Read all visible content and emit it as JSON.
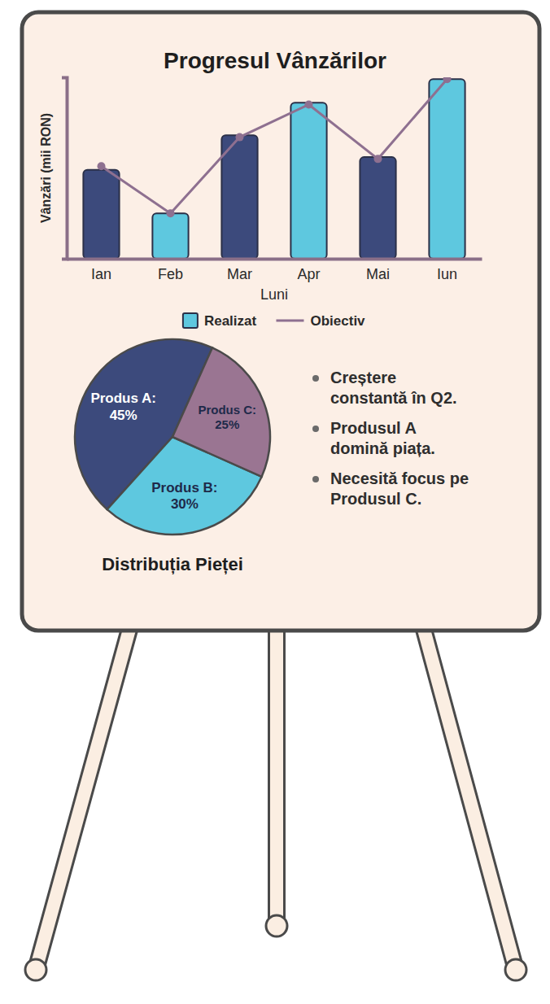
{
  "chart_data": [
    {
      "type": "bar",
      "title": "Progresul Vânzărilor",
      "x_label": "Luni",
      "y_label": "Vânzări (mii RON)",
      "categories": [
        "Ian",
        "Feb",
        "Mar",
        "Apr",
        "Mai",
        "Iun"
      ],
      "series": [
        {
          "name": "Realizat",
          "type": "bar",
          "color": "#5ec8df",
          "colors": [
            "#3c4a7c",
            "#5ec8df",
            "#3c4a7c",
            "#5ec8df",
            "#3c4a7c",
            "#5ec8df"
          ],
          "values": [
            49,
            25,
            68,
            86,
            56,
            99
          ]
        },
        {
          "name": "Obiectiv",
          "type": "line",
          "color": "#8e7090",
          "marker": "circle",
          "values": [
            51,
            25,
            67,
            85,
            55,
            99
          ]
        }
      ],
      "ylim": [
        0,
        100
      ],
      "tick_labels": "x",
      "grid": false,
      "legend": "bottom"
    },
    {
      "type": "pie",
      "title": "Distribuția Pieței",
      "categories": [
        "Produs A:",
        "Produs B:",
        "Produs C:"
      ],
      "values": [
        45,
        30,
        25
      ],
      "value_labels": [
        "45%",
        "30%",
        "25%"
      ],
      "colors": [
        "#3c4a7c",
        "#5ec8df",
        "#9a7592"
      ],
      "data_labels": true,
      "annotations": [
        "Creștere constantă în Q2.",
        "Produsul A domină piața.",
        "Necesită focus pe Produsul C."
      ]
    }
  ]
}
